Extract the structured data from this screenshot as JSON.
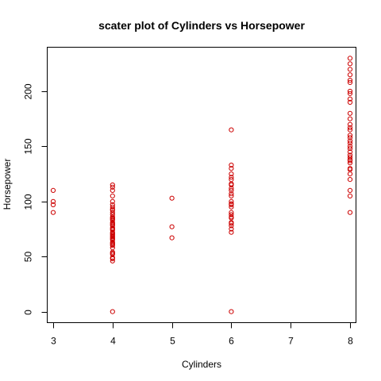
{
  "chart_data": {
    "type": "scatter",
    "title": "scater plot of Cylinders vs Horsepower",
    "xlabel": "Cylinders",
    "ylabel": "Horsepower",
    "xlim": [
      2.9,
      8.1
    ],
    "ylim": [
      -10,
      240
    ],
    "x_ticks": [
      3,
      4,
      5,
      6,
      7,
      8
    ],
    "y_ticks": [
      0,
      50,
      100,
      150,
      200
    ],
    "grid": false,
    "point_color": "#CC0000",
    "point_shape": "open-circle",
    "points": [
      [
        3,
        110
      ],
      [
        3,
        100
      ],
      [
        3,
        97
      ],
      [
        3,
        90
      ],
      [
        4,
        115
      ],
      [
        4,
        113
      ],
      [
        4,
        110
      ],
      [
        4,
        105
      ],
      [
        4,
        100
      ],
      [
        4,
        97
      ],
      [
        4,
        95
      ],
      [
        4,
        93
      ],
      [
        4,
        92
      ],
      [
        4,
        90
      ],
      [
        4,
        88
      ],
      [
        4,
        86
      ],
      [
        4,
        85
      ],
      [
        4,
        84
      ],
      [
        4,
        83
      ],
      [
        4,
        81
      ],
      [
        4,
        80
      ],
      [
        4,
        79
      ],
      [
        4,
        78
      ],
      [
        4,
        76
      ],
      [
        4,
        75
      ],
      [
        4,
        74
      ],
      [
        4,
        72
      ],
      [
        4,
        71
      ],
      [
        4,
        70
      ],
      [
        4,
        69
      ],
      [
        4,
        68
      ],
      [
        4,
        67
      ],
      [
        4,
        66
      ],
      [
        4,
        65
      ],
      [
        4,
        63
      ],
      [
        4,
        62
      ],
      [
        4,
        61
      ],
      [
        4,
        60
      ],
      [
        4,
        58
      ],
      [
        4,
        54
      ],
      [
        4,
        53
      ],
      [
        4,
        52
      ],
      [
        4,
        49
      ],
      [
        4,
        48
      ],
      [
        4,
        46
      ],
      [
        4,
        0
      ],
      [
        5,
        103
      ],
      [
        5,
        77
      ],
      [
        5,
        67
      ],
      [
        6,
        165
      ],
      [
        6,
        133
      ],
      [
        6,
        130
      ],
      [
        6,
        125
      ],
      [
        6,
        122
      ],
      [
        6,
        120
      ],
      [
        6,
        116
      ],
      [
        6,
        115
      ],
      [
        6,
        112
      ],
      [
        6,
        110
      ],
      [
        6,
        107
      ],
      [
        6,
        105
      ],
      [
        6,
        100
      ],
      [
        6,
        98
      ],
      [
        6,
        97
      ],
      [
        6,
        95
      ],
      [
        6,
        90
      ],
      [
        6,
        88
      ],
      [
        6,
        86
      ],
      [
        6,
        85
      ],
      [
        6,
        81
      ],
      [
        6,
        80
      ],
      [
        6,
        78
      ],
      [
        6,
        75
      ],
      [
        6,
        72
      ],
      [
        6,
        0
      ],
      [
        8,
        230
      ],
      [
        8,
        225
      ],
      [
        8,
        220
      ],
      [
        8,
        215
      ],
      [
        8,
        210
      ],
      [
        8,
        208
      ],
      [
        8,
        200
      ],
      [
        8,
        198
      ],
      [
        8,
        193
      ],
      [
        8,
        190
      ],
      [
        8,
        180
      ],
      [
        8,
        175
      ],
      [
        8,
        170
      ],
      [
        8,
        167
      ],
      [
        8,
        165
      ],
      [
        8,
        160
      ],
      [
        8,
        158
      ],
      [
        8,
        155
      ],
      [
        8,
        153
      ],
      [
        8,
        150
      ],
      [
        8,
        148
      ],
      [
        8,
        145
      ],
      [
        8,
        142
      ],
      [
        8,
        140
      ],
      [
        8,
        138
      ],
      [
        8,
        137
      ],
      [
        8,
        135
      ],
      [
        8,
        130
      ],
      [
        8,
        129
      ],
      [
        8,
        125
      ],
      [
        8,
        120
      ],
      [
        8,
        110
      ],
      [
        8,
        105
      ],
      [
        8,
        90
      ]
    ]
  }
}
